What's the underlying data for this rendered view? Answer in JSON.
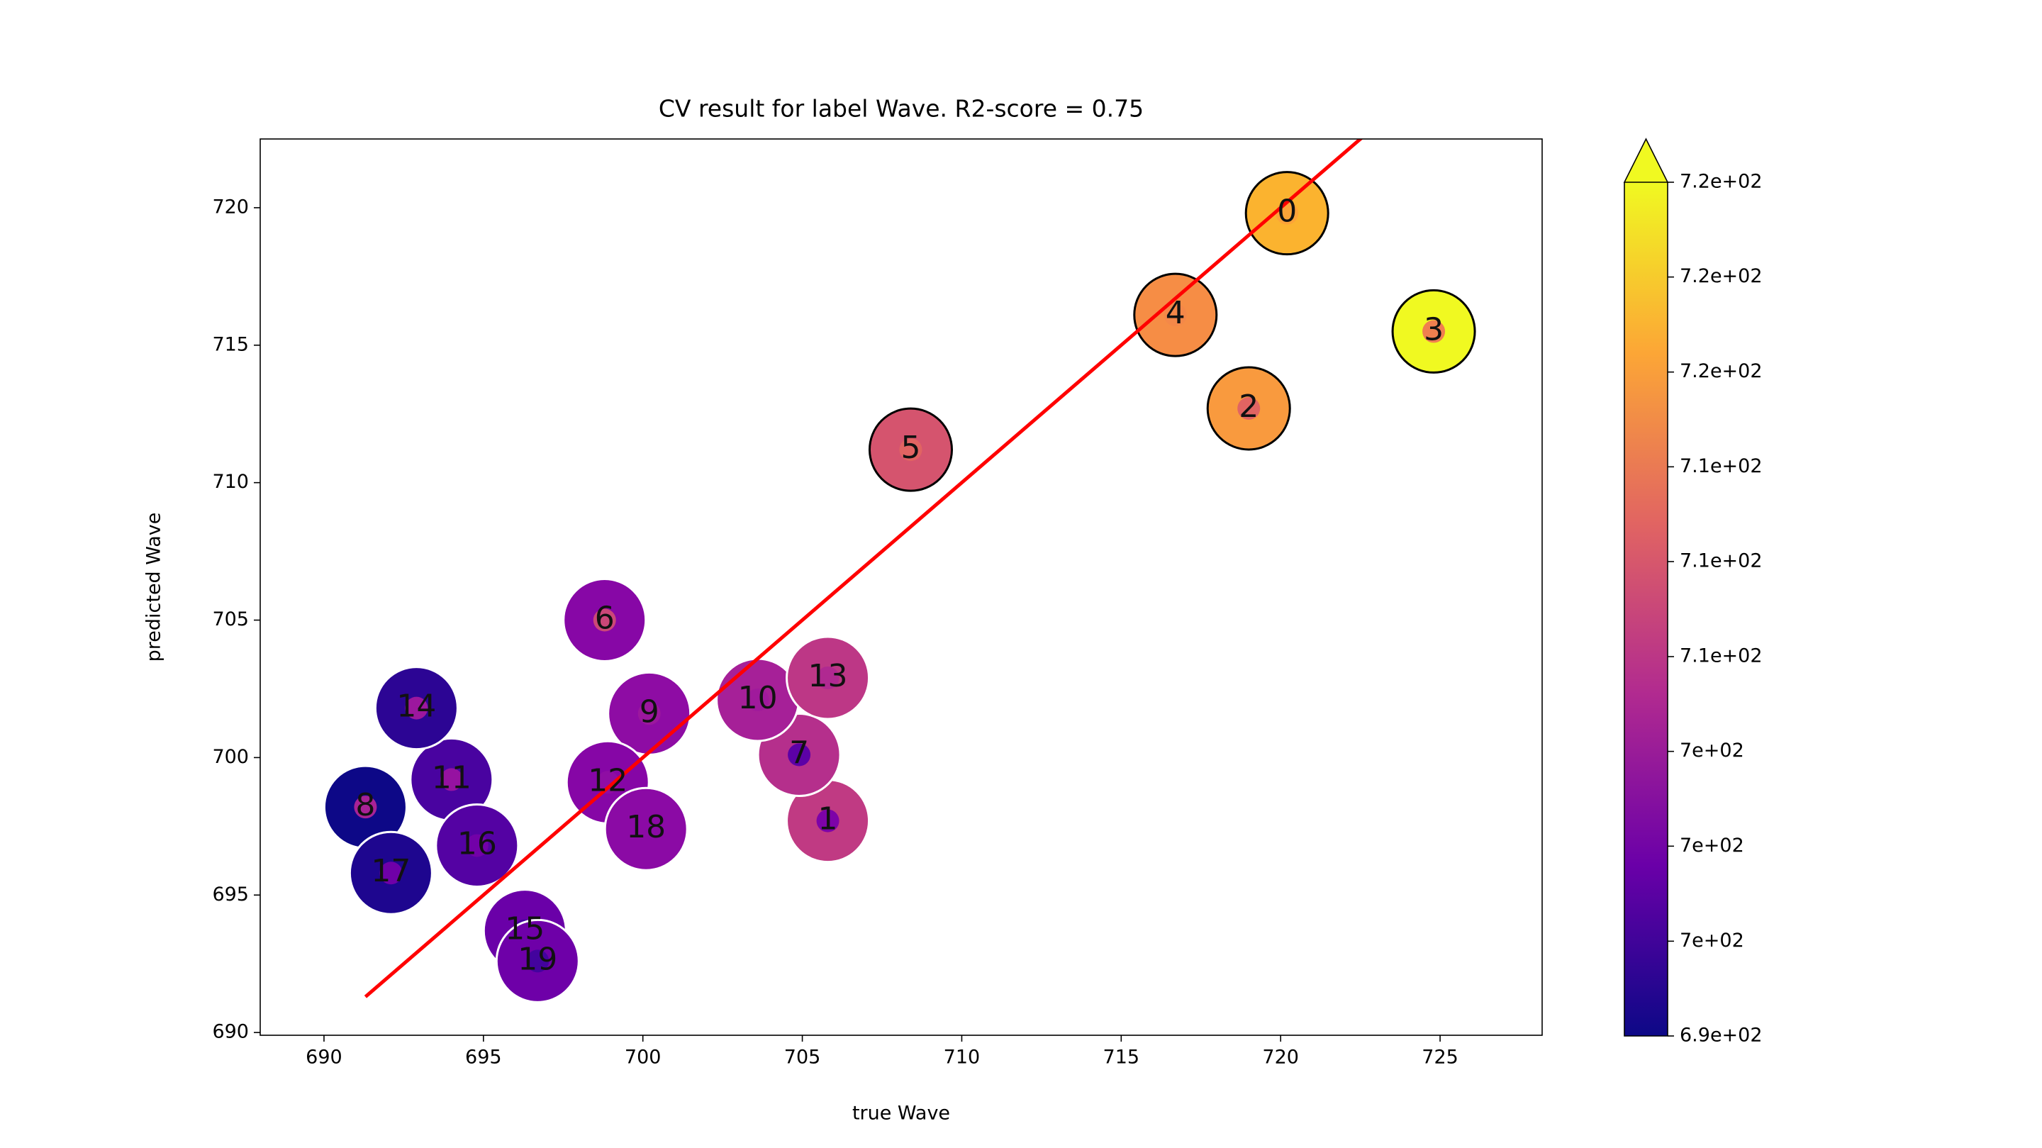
{
  "chart_data": {
    "type": "scatter",
    "title": "CV result for label Wave. R2-score = 0.75",
    "x_label": "true Wave",
    "y_label": "predicted Wave",
    "x": [
      720.2,
      705.8,
      719.0,
      724.8,
      716.7,
      708.4,
      698.8,
      704.9,
      691.3,
      700.2,
      703.6,
      694.0,
      698.9,
      705.8,
      692.9,
      696.3,
      694.8,
      692.1,
      700.1,
      696.7
    ],
    "y": [
      719.8,
      697.7,
      712.7,
      715.5,
      716.1,
      711.2,
      705.0,
      700.1,
      698.2,
      701.6,
      702.1,
      699.2,
      699.1,
      702.9,
      701.8,
      693.7,
      696.8,
      695.8,
      697.4,
      692.6
    ],
    "labels": [
      "0",
      "1",
      "2",
      "3",
      "4",
      "5",
      "6",
      "7",
      "8",
      "9",
      "10",
      "11",
      "12",
      "13",
      "14",
      "15",
      "16",
      "17",
      "18",
      "19"
    ],
    "colors": [
      "#fbb32f",
      "#c03a83",
      "#f99a3e",
      "#f0f921",
      "#f68d45",
      "#d5546e",
      "#8707a6",
      "#b52f8c",
      "#0d0887",
      "#8e0ca4",
      "#a62098",
      "#4903a0",
      "#8606a6",
      "#bd3786",
      "#2c0594",
      "#6a00a8",
      "#5402a3",
      "#1e068f",
      "#8b0aa5",
      "#6e00a8"
    ],
    "inner_colors": [
      "#fca338",
      "#7d03a8",
      "#e16462",
      "#f07f4f",
      "#f48849",
      "#e16462",
      "#cc4778",
      "#5c01a6",
      "#a82296",
      "#9c179e",
      "#a01a9c",
      "#9612a1",
      "#8f0da4",
      "#b02991",
      "#9c179e",
      "#46039f",
      "#7201a8",
      "#6f00a8",
      "#8b0aa5",
      "#43039e"
    ],
    "edgecolors": [
      "#000000",
      "#ffffff",
      "#000000",
      "#000000",
      "#000000",
      "#000000",
      "#ffffff",
      "#ffffff",
      "#ffffff",
      "#ffffff",
      "#ffffff",
      "#ffffff",
      "#ffffff",
      "#ffffff",
      "#ffffff",
      "#ffffff",
      "#ffffff",
      "#ffffff",
      "#ffffff",
      "#ffffff"
    ],
    "reference_line": {
      "x": [
        691.3,
        724.9
      ],
      "y": [
        691.3,
        724.9
      ],
      "color": "#ff0000"
    },
    "xlim": [
      688,
      728.2
    ],
    "ylim": [
      689.9,
      722.5
    ],
    "xticks": [
      690,
      695,
      700,
      705,
      710,
      715,
      720,
      725
    ],
    "yticks": [
      690,
      695,
      700,
      705,
      710,
      715,
      720
    ],
    "colorbar": {
      "clim": [
        691.3,
        724.9
      ],
      "colormap": [
        "#0d0887",
        "#6a00a8",
        "#b12a90",
        "#e16462",
        "#fca636",
        "#f0f921"
      ],
      "extend_color": "#f0f921",
      "ticks": [
        {
          "value": 691.3,
          "label": "6.9e+02"
        },
        {
          "value": 695.03,
          "label": "7e+02"
        },
        {
          "value": 698.77,
          "label": "7e+02"
        },
        {
          "value": 702.5,
          "label": "7e+02"
        },
        {
          "value": 706.23,
          "label": "7.1e+02"
        },
        {
          "value": 709.97,
          "label": "7.1e+02"
        },
        {
          "value": 713.7,
          "label": "7.1e+02"
        },
        {
          "value": 717.43,
          "label": "7.2e+02"
        },
        {
          "value": 721.17,
          "label": "7.2e+02"
        },
        {
          "value": 724.9,
          "label": "7.2e+02"
        }
      ]
    }
  }
}
